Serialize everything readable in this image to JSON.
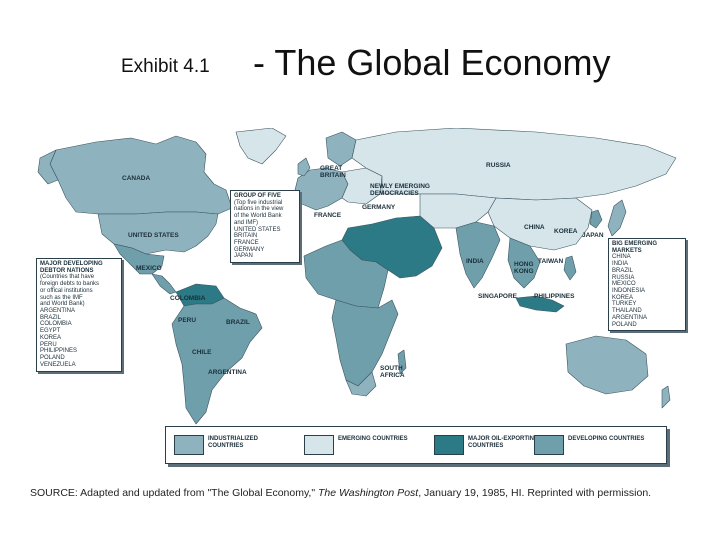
{
  "title": {
    "exhibit": "Exhibit 4.1",
    "main": "- The Global Economy"
  },
  "colors": {
    "industrialized": "#8eb3bf",
    "emerging": "#d5e5ea",
    "oil": "#2b7a86",
    "developing": "#6f9fab",
    "water": "#ffffff"
  },
  "country_labels": {
    "canada": "CANADA",
    "united_states": "UNITED STATES",
    "mexico": "MEXICO",
    "colombia": "COLOMBIA",
    "peru": "PERU",
    "brazil": "BRAZIL",
    "chile": "CHILE",
    "argentina": "ARGENTINA",
    "great_britain_1": "GREAT",
    "great_britain_2": "BRITAIN",
    "france": "FRANCE",
    "germany": "GERMANY",
    "russia": "RUSSIA",
    "china": "CHINA",
    "korea": "KOREA",
    "japan": "JAPAN",
    "india": "INDIA",
    "hong_kong_1": "HONG",
    "hong_kong_2": "KONG",
    "taiwan": "TAIWAN",
    "singapore": "SINGAPORE",
    "philippines": "PHILIPPINES",
    "south_africa_1": "SOUTH",
    "south_africa_2": "AFRICA",
    "newly_emerging_1": "NEWLY EMERGING",
    "newly_emerging_2": "DEMOCRACIES"
  },
  "group_of_five": {
    "heading": "GROUP OF FIVE",
    "subtext": [
      "(Top five industrial",
      "nations in the view",
      "of the World Bank",
      "and IMF)"
    ],
    "items": [
      "UNITED STATES",
      "BRITAIN",
      "FRANCE",
      "GERMANY",
      "JAPAN"
    ]
  },
  "debtor_nations": {
    "heading": [
      "MAJOR DEVELOPING",
      "DEBTOR NATIONS"
    ],
    "subtext": [
      "(Countries that have",
      "foreign debts to banks",
      "or offical institutions",
      "such as the IMF",
      "and World Bank)"
    ],
    "items": [
      "ARGENTINA",
      "BRAZIL",
      "COLOMBIA",
      "EGYPT",
      "KOREA",
      "PERU",
      "PHILIPPINES",
      "POLAND",
      "VENEZUELA"
    ]
  },
  "emerging_markets": {
    "heading": [
      "BIG EMERGING",
      "MARKETS"
    ],
    "items": [
      "CHINA",
      "INDIA",
      "BRAZIL",
      "RUSSIA",
      "MEXICO",
      "INDONESIA",
      "KOREA",
      "TURKEY",
      "THAILAND",
      "ARGENTINA",
      "POLAND"
    ]
  },
  "legend": [
    {
      "label_1": "INDUSTRIALIZED",
      "label_2": "COUNTRIES",
      "color": "#8eb3bf"
    },
    {
      "label_1": "EMERGING COUNTRIES",
      "label_2": "",
      "color": "#d5e5ea"
    },
    {
      "label_1": "MAJOR OIL-EXPORTING",
      "label_2": "COUNTRIES",
      "color": "#2b7a86"
    },
    {
      "label_1": "DEVELOPING COUNTRIES",
      "label_2": "",
      "color": "#6f9fab"
    }
  ],
  "source": {
    "prefix": "SOURCE: Adapted and updated from \"The Global Economy,\" ",
    "publication": "The Washington Post",
    "suffix": ", January 19, 1985, HI. Reprinted with permission."
  }
}
